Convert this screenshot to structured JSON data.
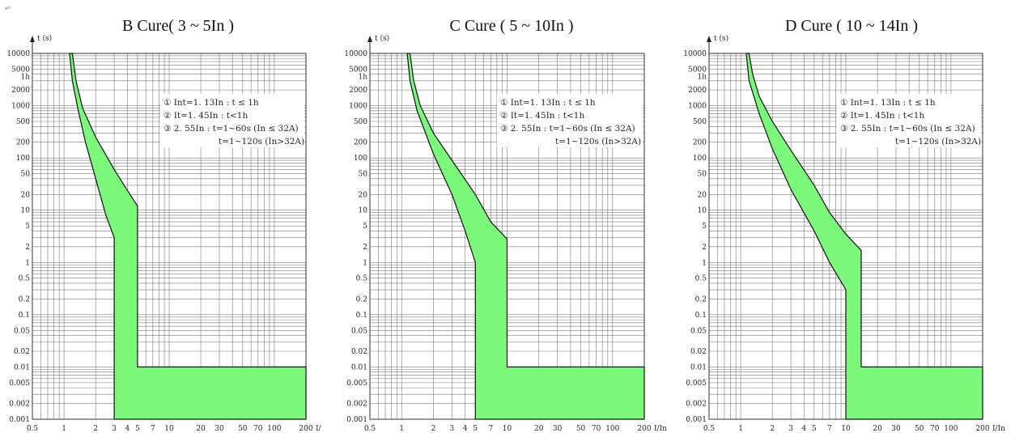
{
  "page": {
    "corner_mark": "↵",
    "color_band": "#7cf87c",
    "color_curve": "#111111"
  },
  "chart_data": [
    {
      "type": "area",
      "title": "B Cure( 3 ~ 5In )",
      "ylabel": "t (s)",
      "xlabel": "I/",
      "x_scale": "log",
      "y_scale": "log",
      "xlim": [
        0.5,
        200
      ],
      "ylim": [
        0.001,
        10000
      ],
      "x_ticks": [
        "0.5",
        "1",
        "2",
        "3",
        "4",
        "5",
        "7",
        "10",
        "20",
        "30",
        "50",
        "70",
        "100",
        "200"
      ],
      "y_ticks": [
        "10000",
        "5000",
        "1h",
        "2000",
        "1000",
        "500",
        "200",
        "100",
        "50",
        "20",
        "10",
        "5",
        "2",
        "1",
        "0.5",
        "0.2",
        "0.1",
        "0.05",
        "0.02",
        "0.01",
        "0.005",
        "0.002",
        "0.001"
      ],
      "legend": [
        "① Int=1. 13In : t ≤ 1h",
        "② It=1. 45In : t<1h",
        "③ 2. 55In : t=1~60s (In ≤ 32A)",
        "t=1~120s (In>32A)"
      ],
      "upper_curve": [
        [
          1.2,
          10000
        ],
        [
          1.3,
          3000
        ],
        [
          1.5,
          900
        ],
        [
          2,
          250
        ],
        [
          3,
          60
        ],
        [
          4,
          24
        ],
        [
          5,
          12
        ],
        [
          5,
          0.01
        ],
        [
          200,
          0.01
        ]
      ],
      "lower_curve": [
        [
          1.13,
          10000
        ],
        [
          1.2,
          3000
        ],
        [
          1.35,
          900
        ],
        [
          1.6,
          200
        ],
        [
          2,
          40
        ],
        [
          2.5,
          8
        ],
        [
          3,
          3
        ],
        [
          3,
          0.001
        ],
        [
          200,
          0.001
        ]
      ]
    },
    {
      "type": "area",
      "title": "C Cure ( 5 ~ 10In )",
      "ylabel": "t (s)",
      "xlabel": "I/In",
      "x_scale": "log",
      "y_scale": "log",
      "xlim": [
        0.5,
        200
      ],
      "ylim": [
        0.001,
        10000
      ],
      "x_ticks": [
        "0.5",
        "1",
        "2",
        "3",
        "4",
        "5",
        "7",
        "10",
        "20",
        "30",
        "50",
        "70",
        "100",
        "200"
      ],
      "y_ticks": [
        "10000",
        "5000",
        "1h",
        "2000",
        "1000",
        "500",
        "200",
        "100",
        "50",
        "20",
        "10",
        "5",
        "2",
        "1",
        "0.5",
        "0.2",
        "0.1",
        "0.05",
        "0.02",
        "0.01",
        "0.005",
        "0.002",
        "0.001"
      ],
      "legend": [
        "① Int=1. 13In : t ≤ 1h",
        "② It=1. 45In : t<1h",
        "③ 2. 55In : t=1~60s (In ≤ 32A)",
        "t=1~120s (In>32A)"
      ],
      "upper_curve": [
        [
          1.2,
          10000
        ],
        [
          1.3,
          3000
        ],
        [
          1.5,
          1000
        ],
        [
          2,
          300
        ],
        [
          3,
          90
        ],
        [
          5,
          20
        ],
        [
          7,
          6
        ],
        [
          10,
          2.8
        ],
        [
          10,
          0.01
        ],
        [
          200,
          0.01
        ]
      ],
      "lower_curve": [
        [
          1.13,
          10000
        ],
        [
          1.2,
          3000
        ],
        [
          1.4,
          800
        ],
        [
          2,
          120
        ],
        [
          3,
          20
        ],
        [
          4,
          4
        ],
        [
          5,
          1
        ],
        [
          5,
          0.001
        ],
        [
          200,
          0.001
        ]
      ]
    },
    {
      "type": "area",
      "title": "D Cure ( 10 ~ 14In )",
      "ylabel": "t (s)",
      "xlabel": "I/In",
      "x_scale": "log",
      "y_scale": "log",
      "xlim": [
        0.5,
        200
      ],
      "ylim": [
        0.001,
        10000
      ],
      "x_ticks": [
        "0.5",
        "1",
        "2",
        "3",
        "4",
        "5",
        "7",
        "10",
        "20",
        "30",
        "50",
        "70",
        "100",
        "200"
      ],
      "y_ticks": [
        "10000",
        "5000",
        "1h",
        "2000",
        "1000",
        "500",
        "200",
        "100",
        "50",
        "20",
        "10",
        "5",
        "2",
        "1",
        "0.5",
        "0.2",
        "0.1",
        "0.05",
        "0.02",
        "0.01",
        "0.005",
        "0.002",
        "0.001"
      ],
      "legend": [
        "① Int=1. 13In : t ≤ 1h",
        "② It=1. 45In : t<1h",
        "③ 2. 55In : t=1~60s (In ≤ 32A)",
        "t=1~120s (In>32A)"
      ],
      "upper_curve": [
        [
          1.2,
          10000
        ],
        [
          1.3,
          4000
        ],
        [
          1.5,
          1500
        ],
        [
          2,
          500
        ],
        [
          3,
          140
        ],
        [
          5,
          30
        ],
        [
          7,
          9
        ],
        [
          10,
          3.5
        ],
        [
          14,
          1.7
        ],
        [
          14,
          0.01
        ],
        [
          200,
          0.01
        ]
      ],
      "lower_curve": [
        [
          1.13,
          10000
        ],
        [
          1.2,
          3000
        ],
        [
          1.5,
          700
        ],
        [
          2,
          150
        ],
        [
          3,
          25
        ],
        [
          5,
          4
        ],
        [
          7,
          1
        ],
        [
          10,
          0.3
        ],
        [
          10,
          0.001
        ],
        [
          200,
          0.001
        ]
      ]
    }
  ]
}
